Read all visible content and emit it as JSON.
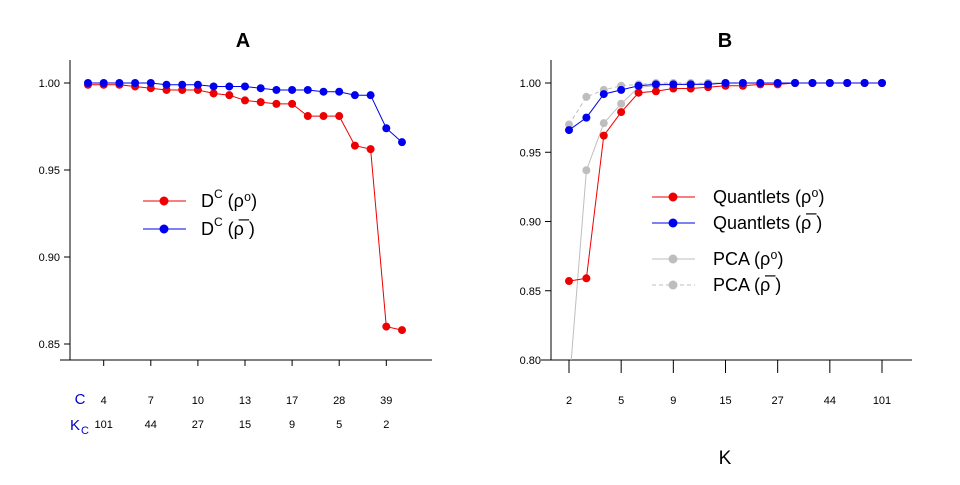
{
  "chart_data": [
    {
      "type": "line",
      "title": "A",
      "ylim": [
        0.84,
        1.005
      ],
      "y_ticks": [
        "0.85",
        "0.90",
        "0.95",
        "1.00"
      ],
      "x_row_label": "C",
      "x_row_values": [
        "4",
        "7",
        "10",
        "13",
        "17",
        "28",
        "39"
      ],
      "x2_row_label": "K",
      "x2_row_label_sub": "C",
      "x2_row_values": [
        "101",
        "44",
        "27",
        "15",
        "9",
        "5",
        "2"
      ],
      "series": [
        {
          "name": "D",
          "name_sup": "C",
          "name_suffix": " (ρ⁰)",
          "color": "#ee0000",
          "values": [
            0.999,
            0.999,
            0.999,
            0.998,
            0.997,
            0.996,
            0.996,
            0.996,
            0.994,
            0.993,
            0.99,
            0.989,
            0.988,
            0.988,
            0.981,
            0.981,
            0.981,
            0.964,
            0.962,
            0.86,
            0.858
          ]
        },
        {
          "name": "D",
          "name_sup": "C",
          "name_suffix": " (ρ̅ )",
          "color": "#0000ee",
          "values": [
            1.0,
            1.0,
            1.0,
            1.0,
            1.0,
            0.999,
            0.999,
            0.999,
            0.998,
            0.998,
            0.998,
            0.997,
            0.996,
            0.996,
            0.996,
            0.995,
            0.995,
            0.993,
            0.993,
            0.974,
            0.966
          ]
        }
      ]
    },
    {
      "type": "line",
      "title": "B",
      "xlabel": "K",
      "ylim": [
        0.8,
        1.005
      ],
      "y_ticks": [
        "0.80",
        "0.85",
        "0.90",
        "0.95",
        "1.00"
      ],
      "x_tick_labels": [
        "2",
        "5",
        "9",
        "15",
        "27",
        "44",
        "101"
      ],
      "series": [
        {
          "name": "Quantlets (ρ⁰)",
          "color": "#ee0000",
          "values": [
            0.857,
            0.859,
            0.962,
            0.979,
            0.993,
            0.994,
            0.996,
            0.996,
            0.997,
            0.998,
            0.998,
            0.999,
            0.999,
            1.0,
            1.0,
            1.0,
            1.0,
            1.0,
            1.0
          ]
        },
        {
          "name": "Quantlets (ρ̅ )",
          "color": "#0000ee",
          "values": [
            0.966,
            0.975,
            0.992,
            0.995,
            0.998,
            0.999,
            0.999,
            0.999,
            0.999,
            1.0,
            1.0,
            1.0,
            1.0,
            1.0,
            1.0,
            1.0,
            1.0,
            1.0,
            1.0
          ]
        },
        {
          "name": "PCA (ρ⁰)",
          "color": "#bebebe",
          "values": [
            0.78,
            0.937,
            0.971,
            0.985,
            0.997,
            0.998,
            0.999,
            0.999,
            1.0,
            1.0,
            1.0,
            1.0,
            1.0,
            1.0,
            1.0,
            1.0,
            1.0,
            1.0,
            1.0
          ]
        },
        {
          "name": "PCA (ρ̅ )",
          "color": "#bebebe",
          "dashed": true,
          "values": [
            0.97,
            0.99,
            0.995,
            0.998,
            0.999,
            1.0,
            1.0,
            1.0,
            1.0,
            1.0,
            1.0,
            1.0,
            1.0,
            1.0,
            1.0,
            1.0,
            1.0,
            1.0,
            1.0
          ]
        }
      ]
    }
  ]
}
